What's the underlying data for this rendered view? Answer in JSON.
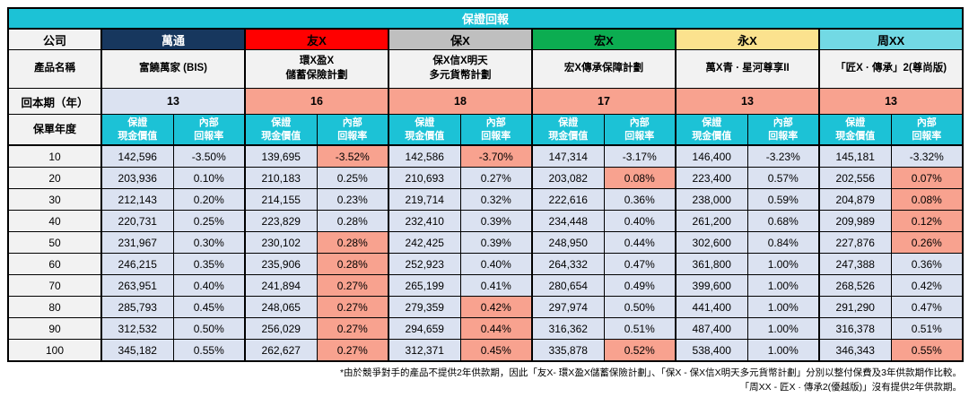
{
  "title": "保證回報",
  "labels": {
    "company": "公司",
    "product": "產品名稱",
    "payback": "回本期（年）",
    "policy_year": "保單年度",
    "cv_line1": "保證",
    "cv_line2": "現金價值",
    "irr_line1": "內部",
    "irr_line2": "回報率"
  },
  "colors": {
    "title_bar": "#1cc2d6",
    "subheader_bg": "#1cc2d6",
    "data_bg": "#dbe2f1",
    "highlight_bg": "#f8a28f",
    "label_bg": "#f2f2f2"
  },
  "companies": [
    {
      "name": "萬通",
      "header_bg": "#17375e",
      "header_text": "#ffffff",
      "product_lines": [
        "富饒萬家 (BIS)"
      ],
      "payback": "13",
      "payback_highlight": false
    },
    {
      "name": "友X",
      "header_bg": "#ff0000",
      "header_text": "#000000",
      "product_lines": [
        "環X盈X",
        "儲蓄保險計劃"
      ],
      "payback": "16",
      "payback_highlight": true
    },
    {
      "name": "保X",
      "header_bg": "#bfbfbf",
      "header_text": "#000000",
      "product_lines": [
        "保X信X明天",
        "多元貨幣計劃"
      ],
      "payback": "18",
      "payback_highlight": true
    },
    {
      "name": "宏X",
      "header_bg": "#0cad51",
      "header_text": "#000000",
      "product_lines": [
        "宏X傳承保障計劃"
      ],
      "payback": "17",
      "payback_highlight": true
    },
    {
      "name": "永X",
      "header_bg": "#fbe28e",
      "header_text": "#000000",
      "product_lines": [
        "萬X青 · 星河尊享II"
      ],
      "payback": "13",
      "payback_highlight": true
    },
    {
      "name": "周XX",
      "header_bg": "#72d9e4",
      "header_text": "#000000",
      "product_lines": [
        "「匠X · 傳承」2(尊尚版)"
      ],
      "payback": "13",
      "payback_highlight": true
    }
  ],
  "rows": [
    {
      "year": "10",
      "cells": [
        {
          "v": "142,596"
        },
        {
          "v": "-3.50%"
        },
        {
          "v": "139,695"
        },
        {
          "v": "-3.52%",
          "hl": true
        },
        {
          "v": "142,586"
        },
        {
          "v": "-3.70%",
          "hl": true
        },
        {
          "v": "147,314"
        },
        {
          "v": "-3.17%"
        },
        {
          "v": "146,400"
        },
        {
          "v": "-3.23%"
        },
        {
          "v": "145,181"
        },
        {
          "v": "-3.32%"
        }
      ]
    },
    {
      "year": "20",
      "cells": [
        {
          "v": "203,936"
        },
        {
          "v": "0.10%"
        },
        {
          "v": "210,183"
        },
        {
          "v": "0.25%"
        },
        {
          "v": "210,693"
        },
        {
          "v": "0.27%"
        },
        {
          "v": "203,082"
        },
        {
          "v": "0.08%",
          "hl": true
        },
        {
          "v": "223,400"
        },
        {
          "v": "0.57%"
        },
        {
          "v": "202,556"
        },
        {
          "v": "0.07%",
          "hl": true
        }
      ]
    },
    {
      "year": "30",
      "cells": [
        {
          "v": "212,143"
        },
        {
          "v": "0.20%"
        },
        {
          "v": "214,155"
        },
        {
          "v": "0.23%"
        },
        {
          "v": "219,714"
        },
        {
          "v": "0.32%"
        },
        {
          "v": "222,616"
        },
        {
          "v": "0.36%"
        },
        {
          "v": "238,000"
        },
        {
          "v": "0.59%"
        },
        {
          "v": "204,879"
        },
        {
          "v": "0.08%",
          "hl": true
        }
      ]
    },
    {
      "year": "40",
      "cells": [
        {
          "v": "220,731"
        },
        {
          "v": "0.25%"
        },
        {
          "v": "223,829"
        },
        {
          "v": "0.28%"
        },
        {
          "v": "232,410"
        },
        {
          "v": "0.39%"
        },
        {
          "v": "234,448"
        },
        {
          "v": "0.40%"
        },
        {
          "v": "261,200"
        },
        {
          "v": "0.68%"
        },
        {
          "v": "209,989"
        },
        {
          "v": "0.12%",
          "hl": true
        }
      ]
    },
    {
      "year": "50",
      "cells": [
        {
          "v": "231,967"
        },
        {
          "v": "0.30%"
        },
        {
          "v": "230,102"
        },
        {
          "v": "0.28%",
          "hl": true
        },
        {
          "v": "242,425"
        },
        {
          "v": "0.39%"
        },
        {
          "v": "248,950"
        },
        {
          "v": "0.44%"
        },
        {
          "v": "302,600"
        },
        {
          "v": "0.84%"
        },
        {
          "v": "227,876"
        },
        {
          "v": "0.26%",
          "hl": true
        }
      ]
    },
    {
      "year": "60",
      "cells": [
        {
          "v": "246,215"
        },
        {
          "v": "0.35%"
        },
        {
          "v": "235,906"
        },
        {
          "v": "0.28%",
          "hl": true
        },
        {
          "v": "252,923"
        },
        {
          "v": "0.40%"
        },
        {
          "v": "264,332"
        },
        {
          "v": "0.47%"
        },
        {
          "v": "361,800"
        },
        {
          "v": "1.00%"
        },
        {
          "v": "247,388"
        },
        {
          "v": "0.36%"
        }
      ]
    },
    {
      "year": "70",
      "cells": [
        {
          "v": "263,951"
        },
        {
          "v": "0.40%"
        },
        {
          "v": "241,894"
        },
        {
          "v": "0.27%",
          "hl": true
        },
        {
          "v": "265,199"
        },
        {
          "v": "0.41%"
        },
        {
          "v": "280,654"
        },
        {
          "v": "0.49%"
        },
        {
          "v": "399,600"
        },
        {
          "v": "1.00%"
        },
        {
          "v": "268,526"
        },
        {
          "v": "0.42%"
        }
      ]
    },
    {
      "year": "80",
      "cells": [
        {
          "v": "285,793"
        },
        {
          "v": "0.45%"
        },
        {
          "v": "248,065"
        },
        {
          "v": "0.27%",
          "hl": true
        },
        {
          "v": "279,359"
        },
        {
          "v": "0.42%",
          "hl": true
        },
        {
          "v": "297,974"
        },
        {
          "v": "0.50%"
        },
        {
          "v": "441,400"
        },
        {
          "v": "1.00%"
        },
        {
          "v": "291,290"
        },
        {
          "v": "0.47%"
        }
      ]
    },
    {
      "year": "90",
      "cells": [
        {
          "v": "312,532"
        },
        {
          "v": "0.50%"
        },
        {
          "v": "256,029"
        },
        {
          "v": "0.27%",
          "hl": true
        },
        {
          "v": "294,659"
        },
        {
          "v": "0.44%",
          "hl": true
        },
        {
          "v": "316,362"
        },
        {
          "v": "0.51%"
        },
        {
          "v": "487,400"
        },
        {
          "v": "1.00%"
        },
        {
          "v": "316,378"
        },
        {
          "v": "0.51%"
        }
      ]
    },
    {
      "year": "100",
      "cells": [
        {
          "v": "345,182"
        },
        {
          "v": "0.55%"
        },
        {
          "v": "262,627"
        },
        {
          "v": "0.27%",
          "hl": true
        },
        {
          "v": "312,371"
        },
        {
          "v": "0.45%",
          "hl": true
        },
        {
          "v": "335,878"
        },
        {
          "v": "0.52%",
          "hl": true
        },
        {
          "v": "538,400"
        },
        {
          "v": "1.00%"
        },
        {
          "v": "346,343"
        },
        {
          "v": "0.55%",
          "hl": true
        }
      ]
    }
  ],
  "footnotes": {
    "line1": "*由於競爭對手的產品不提供2年供款期，因此「友X- 環X盈X儲蓄保險計劃」、「保X - 保X信X明天多元貨幣計劃」分別以整付保費及3年供款期作比較。",
    "line2": "「周XX - 匠X · 傳承2(優越版)」沒有提供2年供款期。"
  }
}
